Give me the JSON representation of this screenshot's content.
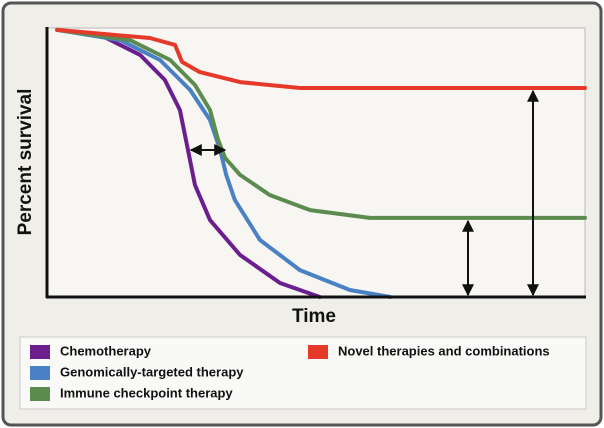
{
  "chart_data": {
    "type": "line",
    "x_label": "Time",
    "y_label": "Percent survival",
    "xlim": [
      0,
      100
    ],
    "ylim": [
      0,
      100
    ],
    "legend": "bottom",
    "series": [
      {
        "name": "Chemotherapy",
        "color": "#6b1f8f",
        "x": [
          1.9,
          9.9,
          17.3,
          21.9,
          24.7,
          26.2,
          27.5,
          30.3,
          35.9,
          43.3,
          50.7
        ],
        "values": [
          99.3,
          97.4,
          90.0,
          80.7,
          69.5,
          54.6,
          41.6,
          28.6,
          15.6,
          5.2,
          0
        ]
      },
      {
        "name": "Genomically-targeted therapy",
        "color": "#4a80c4",
        "x": [
          1.9,
          13.6,
          21.0,
          26.6,
          30.3,
          32.2,
          33.3,
          34.9,
          39.6,
          47.0,
          56.3,
          63.8
        ],
        "values": [
          99.3,
          95.5,
          88.1,
          77.0,
          65.8,
          54.6,
          45.4,
          36.1,
          21.2,
          10.0,
          2.6,
          0
        ]
      },
      {
        "name": "Immune checkpoint therapy",
        "color": "#5b8b4f",
        "x": [
          1.9,
          15.4,
          22.9,
          27.5,
          30.3,
          31.8,
          33.1,
          35.9,
          41.4,
          48.9,
          60.0,
          100
        ],
        "values": [
          99.3,
          95.5,
          88.1,
          78.8,
          69.5,
          58.4,
          51.7,
          45.4,
          37.9,
          32.3,
          29.4,
          29.4
        ]
      },
      {
        "name": "Novel therapies and combinations",
        "color": "#e5392a",
        "x": [
          1.9,
          19.1,
          23.8,
          25.1,
          28.4,
          35.9,
          47.0,
          100
        ],
        "values": [
          99.3,
          96.3,
          93.7,
          87.4,
          83.6,
          79.9,
          77.7,
          77.7
        ]
      }
    ]
  }
}
